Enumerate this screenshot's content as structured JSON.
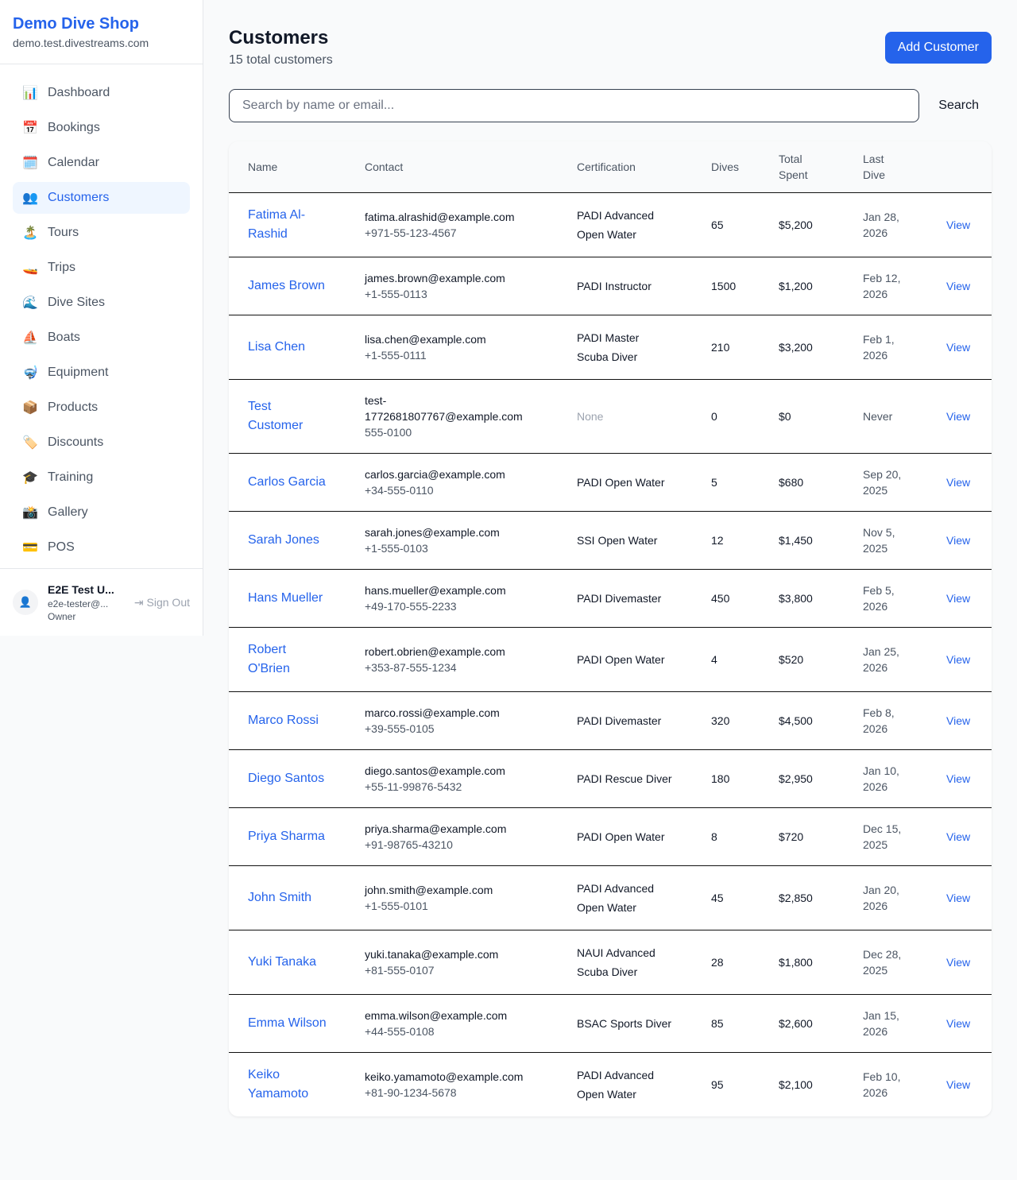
{
  "sidebar": {
    "brand": "Demo Dive Shop",
    "domain": "demo.test.divestreams.com",
    "items": [
      {
        "icon": "📊",
        "label": "Dashboard"
      },
      {
        "icon": "📅",
        "label": "Bookings"
      },
      {
        "icon": "🗓️",
        "label": "Calendar"
      },
      {
        "icon": "👥",
        "label": "Customers",
        "active": true
      },
      {
        "icon": "🏝️",
        "label": "Tours"
      },
      {
        "icon": "🚤",
        "label": "Trips"
      },
      {
        "icon": "🌊",
        "label": "Dive Sites"
      },
      {
        "icon": "⛵",
        "label": "Boats"
      },
      {
        "icon": "🤿",
        "label": "Equipment"
      },
      {
        "icon": "📦",
        "label": "Products"
      },
      {
        "icon": "🏷️",
        "label": "Discounts"
      },
      {
        "icon": "🎓",
        "label": "Training"
      },
      {
        "icon": "📸",
        "label": "Gallery"
      },
      {
        "icon": "💳",
        "label": "POS"
      }
    ],
    "user": {
      "name": "E2E Test U...",
      "email": "e2e-tester@...",
      "role": "Owner",
      "sign_out": "Sign Out"
    }
  },
  "header": {
    "title": "Customers",
    "subtitle": "15 total customers",
    "add_button": "Add Customer"
  },
  "search": {
    "placeholder": "Search by name or email...",
    "button": "Search"
  },
  "table": {
    "columns": [
      "Name",
      "Contact",
      "Certification",
      "Dives",
      "Total Spent",
      "Last Dive",
      ""
    ],
    "view_label": "View",
    "rows": [
      [
        "Fatima Al-Rashid",
        "fatima.alrashid@example.com",
        "+971-55-123-4567",
        "PADI Advanced Open Water",
        "65",
        "$5,200",
        "Jan 28, 2026"
      ],
      [
        "James Brown",
        "james.brown@example.com",
        "+1-555-0113",
        "PADI Instructor",
        "1500",
        "$1,200",
        "Feb 12, 2026"
      ],
      [
        "Lisa Chen",
        "lisa.chen@example.com",
        "+1-555-0111",
        "PADI Master Scuba Diver",
        "210",
        "$3,200",
        "Feb 1, 2026"
      ],
      [
        "Test Customer",
        "test-1772681807767@example.com",
        "555-0100",
        "None",
        "0",
        "$0",
        "Never"
      ],
      [
        "Carlos Garcia",
        "carlos.garcia@example.com",
        "+34-555-0110",
        "PADI Open Water",
        "5",
        "$680",
        "Sep 20, 2025"
      ],
      [
        "Sarah Jones",
        "sarah.jones@example.com",
        "+1-555-0103",
        "SSI Open Water",
        "12",
        "$1,450",
        "Nov 5, 2025"
      ],
      [
        "Hans Mueller",
        "hans.mueller@example.com",
        "+49-170-555-2233",
        "PADI Divemaster",
        "450",
        "$3,800",
        "Feb 5, 2026"
      ],
      [
        "Robert O'Brien",
        "robert.obrien@example.com",
        "+353-87-555-1234",
        "PADI Open Water",
        "4",
        "$520",
        "Jan 25, 2026"
      ],
      [
        "Marco Rossi",
        "marco.rossi@example.com",
        "+39-555-0105",
        "PADI Divemaster",
        "320",
        "$4,500",
        "Feb 8, 2026"
      ],
      [
        "Diego Santos",
        "diego.santos@example.com",
        "+55-11-99876-5432",
        "PADI Rescue Diver",
        "180",
        "$2,950",
        "Jan 10, 2026"
      ],
      [
        "Priya Sharma",
        "priya.sharma@example.com",
        "+91-98765-43210",
        "PADI Open Water",
        "8",
        "$720",
        "Dec 15, 2025"
      ],
      [
        "John Smith",
        "john.smith@example.com",
        "+1-555-0101",
        "PADI Advanced Open Water",
        "45",
        "$2,850",
        "Jan 20, 2026"
      ],
      [
        "Yuki Tanaka",
        "yuki.tanaka@example.com",
        "+81-555-0107",
        "NAUI Advanced Scuba Diver",
        "28",
        "$1,800",
        "Dec 28, 2025"
      ],
      [
        "Emma Wilson",
        "emma.wilson@example.com",
        "+44-555-0108",
        "BSAC Sports Diver",
        "85",
        "$2,600",
        "Jan 15, 2026"
      ],
      [
        "Keiko Yamamoto",
        "keiko.yamamoto@example.com",
        "+81-90-1234-5678",
        "PADI Advanced Open Water",
        "95",
        "$2,100",
        "Feb 10, 2026"
      ]
    ]
  }
}
